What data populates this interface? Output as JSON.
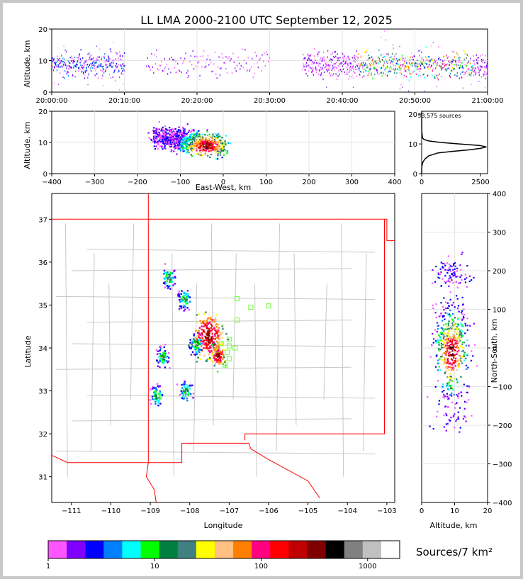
{
  "title": "LL LMA 2000-2100 UTC September 12, 2025",
  "source_count": "53,575 sources",
  "colorbar_label": "Sources/7 km²",
  "colors": {
    "colormap": [
      "#ff55ff",
      "#8000ff",
      "#0000ff",
      "#0080ff",
      "#00ffff",
      "#00ff00",
      "#008040",
      "#408080",
      "#ffff00",
      "#ffc080",
      "#ff8000",
      "#ff0080",
      "#ff0000",
      "#c00000",
      "#800000",
      "#000000",
      "#808080",
      "#c0c0c0",
      "#ffffff"
    ],
    "state_border": "#ff0000",
    "county_lines": "#c8c8c8",
    "station_markers": "#66ff33"
  },
  "chart_data": [
    {
      "id": "time_altitude",
      "type": "scatter",
      "title": "LL LMA 2000-2100 UTC September 12, 2025",
      "xlabel": "",
      "ylabel": "Altitude, km",
      "xlim": [
        "20:00:00",
        "21:00:00"
      ],
      "ylim": [
        0,
        20
      ],
      "x_ticks": [
        "20:00:00",
        "20:10:00",
        "20:20:00",
        "20:30:00",
        "20:40:00",
        "20:50:00",
        "21:00:00"
      ],
      "y_ticks": [
        "0",
        "10",
        "20"
      ],
      "activity_spans_minutes": [
        [
          0,
          10
        ],
        [
          13,
          30
        ],
        [
          34.5,
          60
        ]
      ],
      "altitude_band_km": [
        5,
        13
      ]
    },
    {
      "id": "eastwest_altitude",
      "type": "heatmap",
      "xlabel": "East-West, km",
      "ylabel": "Altitude, km",
      "xlim": [
        -400,
        400
      ],
      "ylim": [
        0,
        20
      ],
      "x_ticks": [
        "−400",
        "−300",
        "−200",
        "−100",
        "0",
        "100",
        "200",
        "300",
        "400"
      ],
      "y_ticks": [
        "0",
        "10",
        "20"
      ],
      "core": {
        "x_km": -40,
        "z_km": 9
      }
    },
    {
      "id": "altitude_histogram",
      "type": "line",
      "xlabel": "",
      "ylabel": "",
      "xlim": [
        0,
        2800
      ],
      "ylim": [
        0,
        21
      ],
      "x_ticks": [
        "0",
        "2500"
      ],
      "y_ticks": [
        "0",
        "10",
        "20"
      ],
      "x": [
        0,
        5,
        20,
        60,
        150,
        300,
        700,
        1300,
        2000,
        2500,
        2750,
        2450,
        1600,
        800,
        300,
        100,
        40,
        20,
        10,
        5,
        3,
        2,
        0
      ],
      "y": [
        0,
        2,
        3,
        4,
        5,
        6,
        7,
        7.5,
        8,
        8.5,
        9,
        9.5,
        10,
        10.5,
        11,
        11.5,
        12,
        13,
        14,
        15,
        17,
        19,
        21
      ]
    },
    {
      "id": "plan_view",
      "type": "heatmap",
      "xlabel": "Longitude",
      "ylabel": "Latitude",
      "xlim": [
        -111.5,
        -102.8
      ],
      "ylim": [
        30.4,
        37.6
      ],
      "x_ticks": [
        "−111",
        "−110",
        "−109",
        "−108",
        "−107",
        "−106",
        "−105",
        "−104",
        "−103"
      ],
      "y_ticks": [
        "31",
        "32",
        "33",
        "34",
        "35",
        "36",
        "37"
      ],
      "clusters": [
        {
          "lon": -107.55,
          "lat": 34.3
        },
        {
          "lon": -107.3,
          "lat": 33.85
        },
        {
          "lon": -107.85,
          "lat": 34.1
        },
        {
          "lon": -108.15,
          "lat": 35.15
        },
        {
          "lon": -108.55,
          "lat": 35.65
        },
        {
          "lon": -108.7,
          "lat": 33.8
        },
        {
          "lon": -108.85,
          "lat": 32.9
        },
        {
          "lon": -108.1,
          "lat": 33.0
        }
      ],
      "stations": [
        {
          "lon": -106.8,
          "lat": 35.15
        },
        {
          "lon": -106.45,
          "lat": 34.95
        },
        {
          "lon": -106.0,
          "lat": 34.98
        },
        {
          "lon": -106.8,
          "lat": 34.65
        },
        {
          "lon": -107.0,
          "lat": 34.2
        },
        {
          "lon": -107.2,
          "lat": 34.1
        },
        {
          "lon": -107.0,
          "lat": 34.05
        },
        {
          "lon": -106.85,
          "lat": 34.0
        },
        {
          "lon": -107.3,
          "lat": 33.95
        },
        {
          "lon": -107.05,
          "lat": 33.9
        },
        {
          "lon": -107.0,
          "lat": 33.75
        },
        {
          "lon": -107.1,
          "lat": 33.6
        }
      ]
    },
    {
      "id": "altitude_northsouth",
      "type": "heatmap",
      "xlabel": "Altitude, km",
      "ylabel": "North-South, km",
      "xlim": [
        0,
        20
      ],
      "ylim": [
        -400,
        400
      ],
      "x_ticks": [
        "0",
        "10",
        "20"
      ],
      "y_ticks": [
        "−400",
        "−300",
        "−200",
        "−100",
        "0",
        "100",
        "200",
        "300",
        "400"
      ],
      "core": {
        "z_km": 9,
        "y_km": -10
      }
    },
    {
      "id": "colorbar",
      "type": "heatmap",
      "xlabel": "Sources/7 km²",
      "scale": "log",
      "xlim": [
        1,
        2000
      ],
      "x_ticks": [
        "1",
        "10",
        "100",
        "1000"
      ]
    }
  ]
}
